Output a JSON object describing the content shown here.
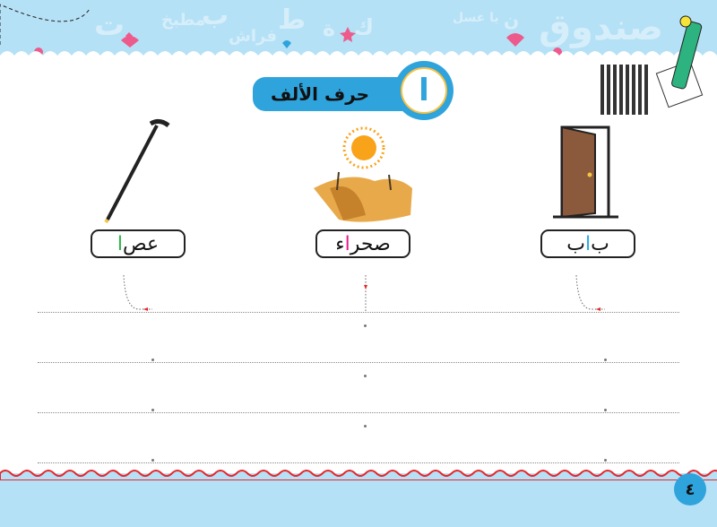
{
  "header": {
    "decorative_words": [
      "صندوق",
      "ت",
      "مطبخ",
      "ب",
      "فراش",
      "ط",
      "ة",
      "ك",
      "يا عسل",
      "ن",
      "غ",
      "أ"
    ]
  },
  "title": {
    "label": "حرف الألف",
    "badge_letter": "ا"
  },
  "words": [
    {
      "before": "ب",
      "alif": "ا",
      "after": "ب",
      "alif_color": "#29a9e8",
      "picture": "door"
    },
    {
      "before": "صحر",
      "alif": "ا",
      "after": "ء",
      "alif_color": "#e8198b",
      "picture": "desert"
    },
    {
      "before": "عص",
      "alif": "ا",
      "after": "",
      "alif_color": "#2db34a",
      "picture": "cane"
    }
  ],
  "page_number": "٤",
  "colors": {
    "accent": "#2fa3dc",
    "band": "#b5e1f6",
    "wave_red": "#e8262b"
  }
}
